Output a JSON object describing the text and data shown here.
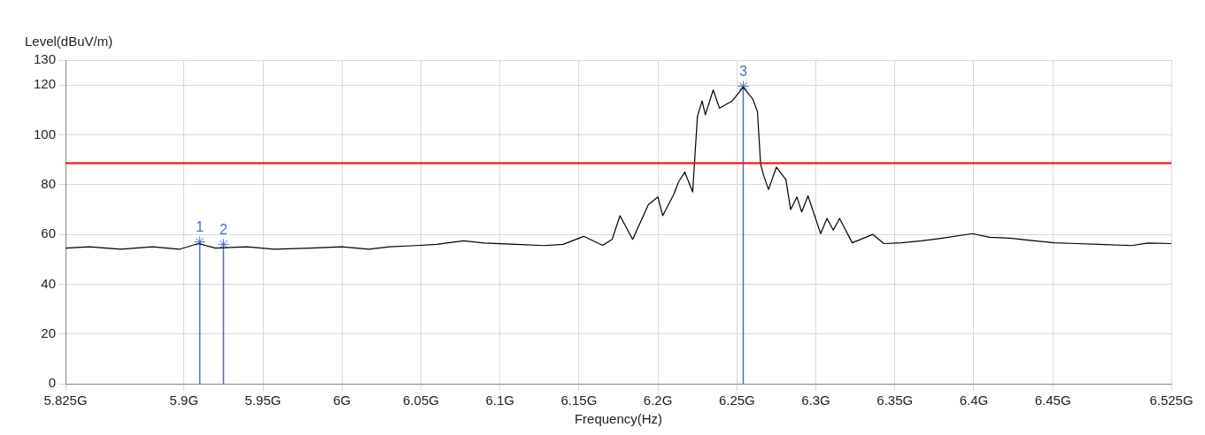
{
  "chart_data": {
    "type": "line",
    "xlabel": "Frequency(Hz)",
    "ylabel": "Level(dBuV/m)",
    "x": [
      5.825,
      5.84,
      5.86,
      5.88,
      5.897,
      5.909,
      5.92,
      5.94,
      5.957,
      5.98,
      6.0,
      6.017,
      6.03,
      6.047,
      6.06,
      6.077,
      6.09,
      6.11,
      6.128,
      6.14,
      6.153,
      6.165,
      6.171,
      6.176,
      6.184,
      6.194,
      6.2,
      6.203,
      6.21,
      6.213,
      6.217,
      6.222,
      6.225,
      6.228,
      6.23,
      6.235,
      6.239,
      6.247,
      6.254,
      6.26,
      6.263,
      6.265,
      6.267,
      6.27,
      6.275,
      6.281,
      6.284,
      6.288,
      6.291,
      6.295,
      6.303,
      6.307,
      6.311,
      6.315,
      6.323,
      6.336,
      6.343,
      6.354,
      6.367,
      6.38,
      6.399,
      6.41,
      6.423,
      6.437,
      6.451,
      6.465,
      6.479,
      6.5,
      6.51,
      6.525
    ],
    "series": [
      {
        "color": "#000000",
        "values": [
          54.5,
          55,
          54,
          55,
          54,
          56.3,
          54.5,
          55,
          54,
          54.5,
          55,
          54,
          55,
          55.5,
          56,
          57.4,
          56.5,
          56,
          55.5,
          56,
          59.2,
          55.6,
          58,
          67.5,
          58,
          72,
          75,
          67.5,
          76,
          81,
          85,
          77,
          107.5,
          113.6,
          108,
          118,
          110.7,
          113.6,
          119.1,
          114.4,
          109.3,
          88.2,
          83.5,
          78,
          87,
          82,
          70,
          75,
          69,
          75.5,
          60.3,
          66.4,
          61.7,
          66.4,
          56.6,
          60,
          56.3,
          56.6,
          57.4,
          58.5,
          60.3,
          58.8,
          58.5,
          57.5,
          56.6,
          56.3,
          56,
          55.5,
          56.5,
          56.3
        ]
      },
      {
        "type": "lollipop",
        "color": "#4472c4",
        "marker": "cross",
        "x": [
          5.91,
          5.925,
          6.254
        ],
        "values": [
          57,
          56,
          119.5
        ]
      }
    ],
    "xlim": [
      5.825,
      6.525
    ],
    "xticks": [
      {
        "value": 5.825,
        "label": "5.825G"
      },
      {
        "value": 5.9,
        "label": "5.9G"
      },
      {
        "value": 5.95,
        "label": "5.95G"
      },
      {
        "value": 6,
        "label": "6G"
      },
      {
        "value": 6.05,
        "label": "6.05G"
      },
      {
        "value": 6.1,
        "label": "6.1G"
      },
      {
        "value": 6.15,
        "label": "6.15G"
      },
      {
        "value": 6.2,
        "label": "6.2G"
      },
      {
        "value": 6.25,
        "label": "6.25G"
      },
      {
        "value": 6.3,
        "label": "6.3G"
      },
      {
        "value": 6.35,
        "label": "6.35G"
      },
      {
        "value": 6.4,
        "label": "6.4G"
      },
      {
        "value": 6.45,
        "label": "6.45G"
      },
      {
        "value": 6.525,
        "label": "6.525G"
      }
    ],
    "ylim": [
      0,
      130
    ],
    "yticks": [
      0,
      20,
      40,
      60,
      80,
      100,
      120,
      130
    ],
    "grid": true,
    "marker": "none",
    "line_style": "solid",
    "ref_lines": [
      {
        "axis": "y",
        "value": 88.6,
        "color": "#ff0000"
      }
    ],
    "annotations": [
      {
        "text": "1",
        "x": 5.91,
        "y": 57
      },
      {
        "text": "2",
        "x": 5.925,
        "y": 56
      },
      {
        "text": "3",
        "x": 6.254,
        "y": 119.5
      }
    ]
  }
}
